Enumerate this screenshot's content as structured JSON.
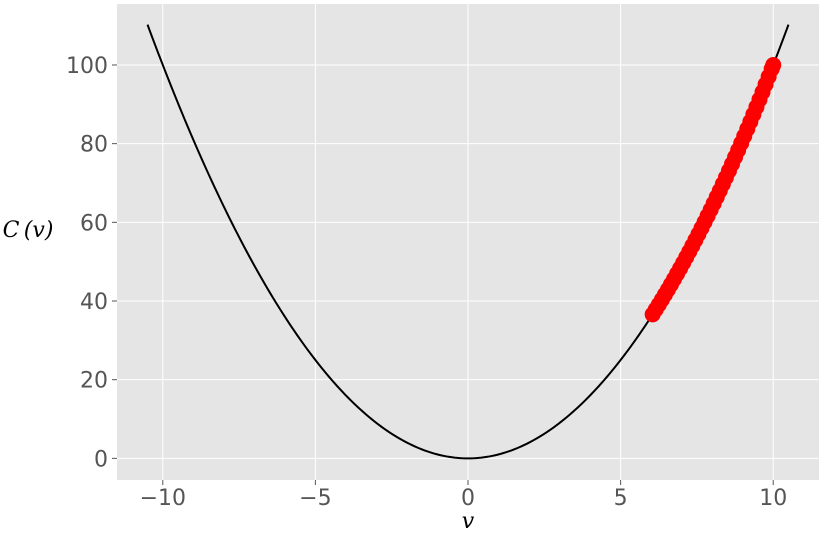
{
  "chart_data": {
    "type": "line",
    "title": "",
    "xlabel": "v",
    "ylabel": "C (v)",
    "xlim": [
      -11.5,
      11.5
    ],
    "ylim": [
      -5.5,
      115.5
    ],
    "grid": true,
    "background": "#e5e5e5",
    "grid_color": "#ffffff",
    "x_ticks": [
      -10,
      -5,
      0,
      5,
      10
    ],
    "x_tick_labels": [
      "−10",
      "−5",
      "0",
      "5",
      "10"
    ],
    "y_ticks": [
      0,
      20,
      40,
      60,
      80,
      100
    ],
    "y_tick_labels": [
      "0",
      "20",
      "40",
      "60",
      "80",
      "100"
    ],
    "series": [
      {
        "kind": "line",
        "function": "v^2",
        "color": "#000000",
        "x": [
          -10.5,
          -10,
          -9,
          -8,
          -7,
          -6,
          -5,
          -4,
          -3,
          -2,
          -1,
          0,
          1,
          2,
          3,
          4,
          5,
          6,
          7,
          8,
          9,
          10,
          10.5
        ],
        "y": [
          110.25,
          100,
          81,
          64,
          49,
          36,
          25,
          16,
          9,
          4,
          1,
          0,
          1,
          4,
          9,
          16,
          25,
          36,
          49,
          64,
          81,
          100,
          110.25
        ]
      },
      {
        "kind": "scatter",
        "color": "#ff0000",
        "x": [
          6.05,
          6.15,
          6.25,
          6.35,
          6.45,
          6.55,
          6.65,
          6.75,
          6.85,
          6.95,
          7.05,
          7.15,
          7.25,
          7.35,
          7.45,
          7.55,
          7.65,
          7.75,
          7.85,
          7.95,
          8.05,
          8.15,
          8.25,
          8.35,
          8.45,
          8.55,
          8.65,
          8.75,
          8.85,
          8.95,
          9.05,
          9.15,
          9.25,
          9.35,
          9.45,
          9.55,
          9.65,
          9.75,
          9.85,
          9.95,
          10.0
        ],
        "y": [
          36.6,
          37.82,
          39.06,
          40.32,
          41.6,
          42.9,
          44.22,
          45.56,
          46.92,
          48.3,
          49.7,
          51.12,
          52.56,
          54.02,
          55.5,
          57.0,
          58.52,
          60.06,
          61.62,
          63.2,
          64.8,
          66.42,
          68.06,
          69.72,
          71.4,
          73.1,
          74.82,
          76.56,
          78.32,
          80.1,
          81.9,
          83.72,
          85.56,
          87.42,
          89.3,
          91.2,
          93.12,
          95.06,
          97.02,
          99.0,
          100.0
        ]
      }
    ]
  }
}
